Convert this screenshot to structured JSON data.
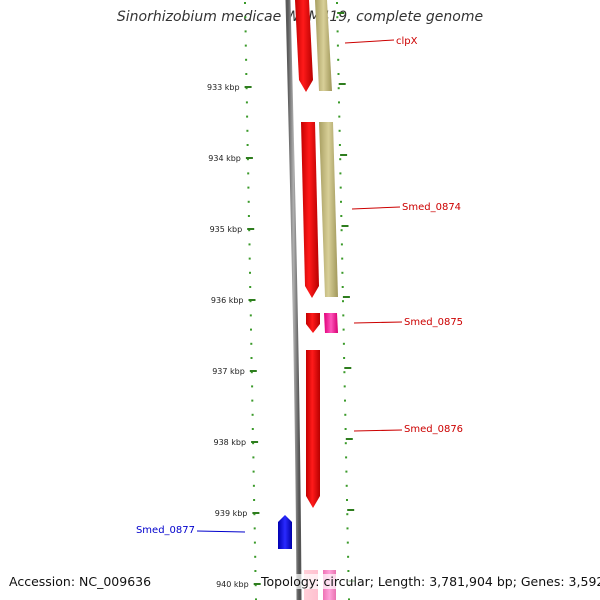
{
  "title": "Sinorhizobium medicae WSM419, complete genome",
  "colors": {
    "backbone": "#8a8a8a",
    "tick_major": "#2e7d1e",
    "tick_minor": "#3a9a2a",
    "gene_forward": "#ff0000",
    "gene_reverse": "#0000ff",
    "feature_tan": "#c8c08a",
    "feature_pink": "#ff33aa",
    "label_forward": "#cc0000",
    "label_reverse": "#0000cc"
  },
  "scale": {
    "unit": "kbp",
    "ticks": [
      {
        "label": "933 kbp"
      },
      {
        "label": "934 kbp"
      },
      {
        "label": "935 kbp"
      },
      {
        "label": "936 kbp"
      },
      {
        "label": "937 kbp"
      },
      {
        "label": "938 kbp"
      },
      {
        "label": "939 kbp"
      },
      {
        "label": "940 kbp"
      }
    ]
  },
  "genes": [
    {
      "name": "clpX",
      "strand": "forward"
    },
    {
      "name": "Smed_0874",
      "strand": "forward"
    },
    {
      "name": "Smed_0875",
      "strand": "forward"
    },
    {
      "name": "Smed_0876",
      "strand": "forward"
    },
    {
      "name": "Smed_0877",
      "strand": "reverse"
    }
  ],
  "footer": {
    "accession": "Accession: NC_009636",
    "topology": "Topology: circular; Length: 3,781,904 bp; Genes: 3,592"
  }
}
